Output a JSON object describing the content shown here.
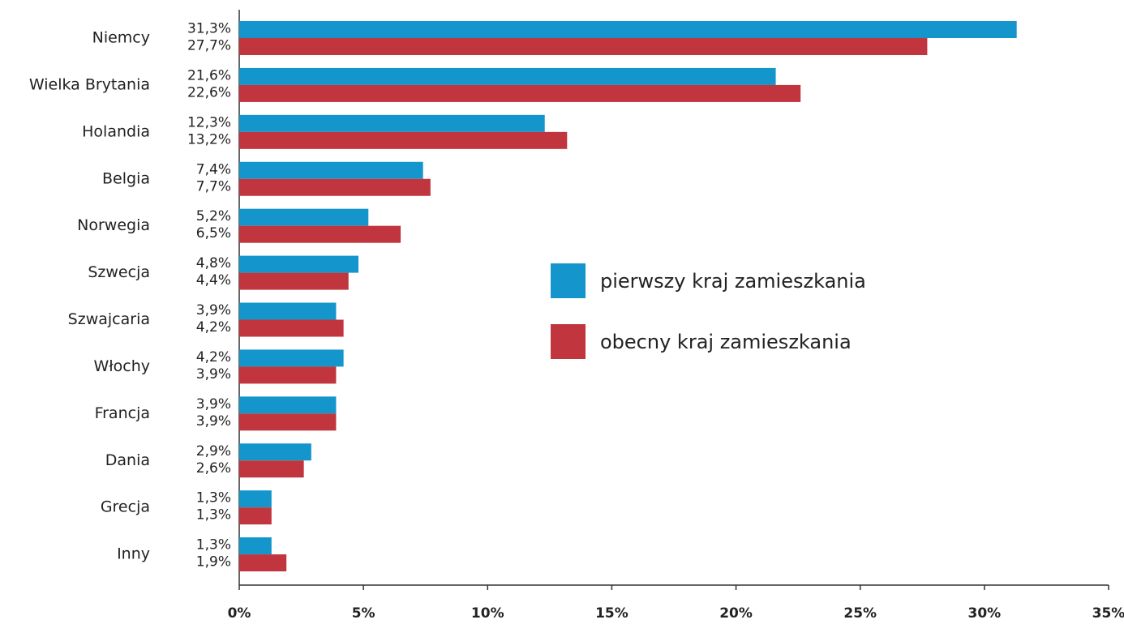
{
  "chart_data": {
    "type": "barh",
    "categories": [
      "Niemcy",
      "Wielka Brytania",
      "Holandia",
      "Belgia",
      "Norwegia",
      "Szwecja",
      "Szwajcaria",
      "Włochy",
      "Francja",
      "Dania",
      "Grecja",
      "Inny"
    ],
    "series": [
      {
        "name": "pierwszy kraj zamieszkania",
        "color": "#1496cc",
        "values": [
          31.3,
          21.6,
          12.3,
          7.4,
          5.2,
          4.8,
          3.9,
          4.2,
          3.9,
          2.9,
          1.3,
          1.3
        ],
        "value_labels": [
          "31,3%",
          "21,6%",
          "12,3%",
          "7,4%",
          "5,2%",
          "4,8%",
          "3,9%",
          "4,2%",
          "3,9%",
          "2,9%",
          "1,3%",
          "1,3%"
        ]
      },
      {
        "name": "obecny kraj zamieszkania",
        "color": "#c1363e",
        "values": [
          27.7,
          22.6,
          13.2,
          7.7,
          6.5,
          4.4,
          4.2,
          3.9,
          3.9,
          2.6,
          1.3,
          1.9
        ],
        "value_labels": [
          "27,7%",
          "22,6%",
          "13,2%",
          "7,7%",
          "6,5%",
          "4,4%",
          "4,2%",
          "3,9%",
          "3,9%",
          "2,6%",
          "1,3%",
          "1,9%"
        ]
      }
    ],
    "xlim": [
      0,
      35
    ],
    "xticks": [
      {
        "value": 0,
        "label": "0%"
      },
      {
        "value": 5,
        "label": "5%"
      },
      {
        "value": 10,
        "label": "10%"
      },
      {
        "value": 15,
        "label": "15%"
      },
      {
        "value": 20,
        "label": "20%"
      },
      {
        "value": 25,
        "label": "25%"
      },
      {
        "value": 30,
        "label": "30%"
      },
      {
        "value": 35,
        "label": "35%"
      }
    ],
    "legend": "center"
  }
}
